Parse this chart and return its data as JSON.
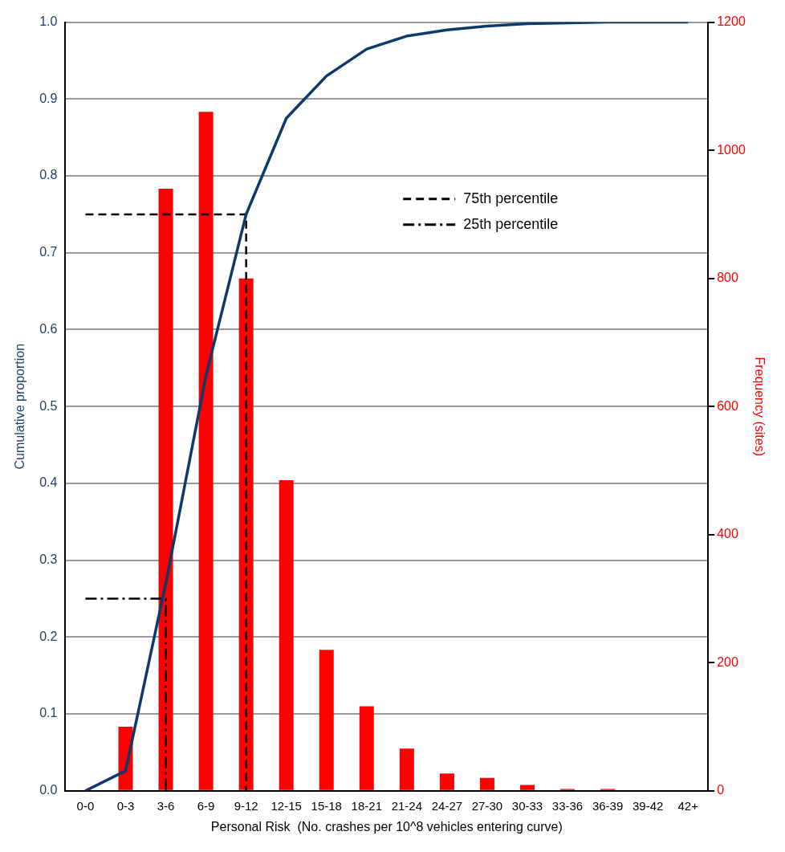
{
  "chart_data": {
    "type": "bar",
    "xlabel": "Personal Risk  (No. crashes per 10^8 vehicles entering curve)",
    "ylabel": "Cumulative proportion",
    "y2label": "Frequency (sites)",
    "categories": [
      "0-0",
      "0-3",
      "3-6",
      "6-9",
      "9-12",
      "12-15",
      "15-18",
      "18-21",
      "21-24",
      "24-27",
      "27-30",
      "30-33",
      "33-36",
      "36-39",
      "39-42",
      "42+"
    ],
    "series": [
      {
        "axis": "y2",
        "color": "#ff0000",
        "values": [
          0,
          100,
          940,
          1060,
          800,
          485,
          220,
          132,
          66,
          27,
          20,
          9,
          3,
          3,
          0,
          0
        ]
      },
      {
        "type": "line",
        "color": "#0b3a6b",
        "values": [
          0,
          0.026,
          0.27,
          0.54,
          0.75,
          0.875,
          0.93,
          0.965,
          0.982,
          0.99,
          0.995,
          0.998,
          0.999,
          1,
          1,
          1
        ]
      },
      {
        "type": "line",
        "name": "75th percentile",
        "color": "#000000",
        "line_style": "dashed",
        "x": [
          "0-0",
          "9-12",
          "9-12"
        ],
        "values": [
          0.75,
          0.75,
          0
        ]
      },
      {
        "type": "line",
        "name": "25th percentile",
        "color": "#000000",
        "line_style": "dashdot",
        "x": [
          "0-0",
          "3-6",
          "3-6"
        ],
        "values": [
          0.25,
          0.25,
          0
        ]
      }
    ],
    "ylim": [
      0,
      1
    ],
    "yticks": [
      {
        "value": 0,
        "label": "0.0"
      },
      0.1,
      0.2,
      0.3,
      0.4,
      0.5,
      0.6,
      0.7,
      0.8,
      0.9,
      {
        "value": 1,
        "label": "1.0"
      }
    ],
    "y2lim": [
      0,
      1200
    ],
    "y2ticks": [
      0,
      200,
      400,
      600,
      800,
      1000,
      1200
    ],
    "grid": "y",
    "legend": "top right",
    "marker": "none"
  }
}
